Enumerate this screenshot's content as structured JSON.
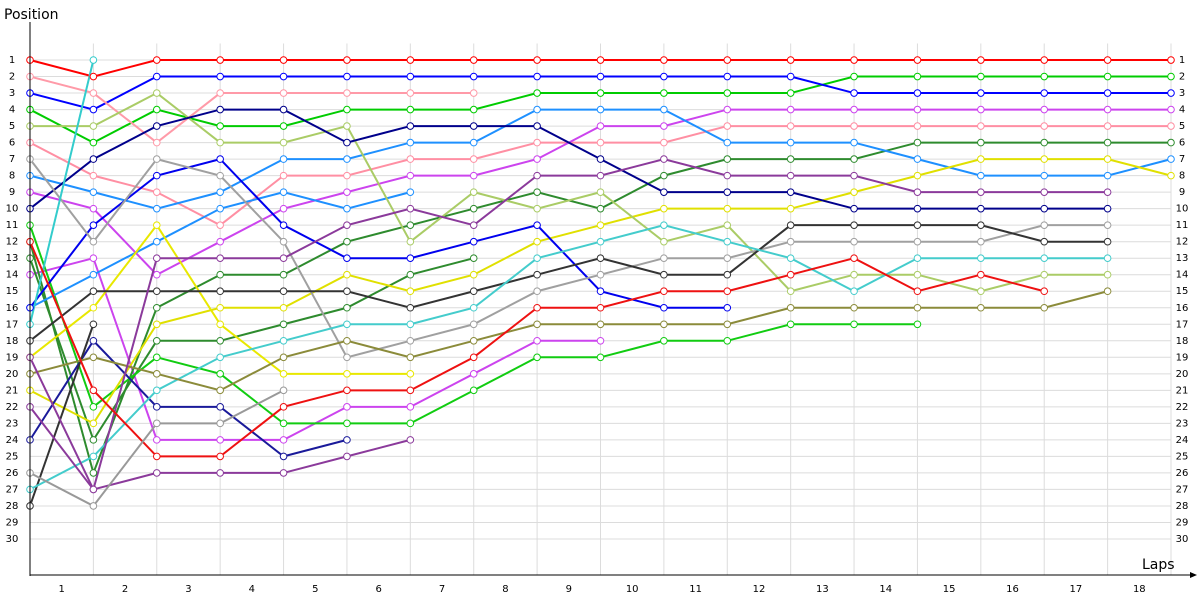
{
  "chart_data": {
    "type": "lap",
    "y_title": "Position",
    "x_title": "Laps",
    "x": [
      0,
      1,
      2,
      3,
      4,
      5,
      6,
      7,
      8,
      9,
      10,
      11,
      12,
      13,
      14,
      15,
      16,
      17,
      18
    ],
    "xlim": [
      0,
      18
    ],
    "xticks": [
      {
        "value": 0.5,
        "label": "1"
      },
      {
        "value": 1.5,
        "label": "2"
      },
      {
        "value": 2.5,
        "label": "3"
      },
      {
        "value": 3.5,
        "label": "4"
      },
      {
        "value": 4.5,
        "label": "5"
      },
      {
        "value": 5.5,
        "label": "6"
      },
      {
        "value": 6.5,
        "label": "7"
      },
      {
        "value": 7.5,
        "label": "8"
      },
      {
        "value": 8.5,
        "label": "9"
      },
      {
        "value": 9.5,
        "label": "10"
      },
      {
        "value": 10.5,
        "label": "11"
      },
      {
        "value": 11.5,
        "label": "12"
      },
      {
        "value": 12.5,
        "label": "13"
      },
      {
        "value": 13.5,
        "label": "14"
      },
      {
        "value": 14.5,
        "label": "15"
      },
      {
        "value": 15.5,
        "label": "16"
      },
      {
        "value": 16.5,
        "label": "17"
      },
      {
        "value": 17.5,
        "label": "18"
      }
    ],
    "ylim": [
      0,
      32
    ],
    "y_reversed": true,
    "yticks": [
      1,
      2,
      3,
      4,
      5,
      6,
      7,
      8,
      9,
      10,
      11,
      12,
      13,
      14,
      15,
      16,
      17,
      18,
      19,
      20,
      21,
      22,
      23,
      24,
      25,
      26,
      27,
      28,
      29,
      30
    ],
    "grid": true,
    "series": [
      {
        "color": "#ff0000",
        "values": [
          1,
          2,
          1,
          1,
          1,
          1,
          1,
          1,
          1,
          1,
          1,
          1,
          1,
          1,
          1,
          1,
          1,
          1,
          1
        ]
      },
      {
        "color": "#00cc00",
        "values": [
          4,
          6,
          4,
          5,
          5,
          4,
          4,
          4,
          3,
          3,
          3,
          3,
          3,
          2,
          2,
          2,
          2,
          2,
          2
        ]
      },
      {
        "color": "#0000ff",
        "values": [
          3,
          4,
          2,
          2,
          2,
          2,
          2,
          2,
          2,
          2,
          2,
          2,
          2,
          3,
          3,
          3,
          3,
          3,
          3
        ]
      },
      {
        "color": "#ff9aa8",
        "values": [
          2,
          3,
          6,
          3,
          3,
          3,
          3,
          3,
          null,
          null,
          null,
          null,
          null,
          null,
          null,
          null,
          null,
          null,
          null
        ]
      },
      {
        "color": "#ff8fa3",
        "values": [
          6,
          8,
          9,
          11,
          8,
          8,
          7,
          7,
          6,
          6,
          6,
          5,
          5,
          5,
          5,
          5,
          5,
          5,
          5
        ]
      },
      {
        "color": "#cc44ee",
        "values": [
          9,
          10,
          14,
          12,
          10,
          9,
          8,
          8,
          7,
          5,
          5,
          4,
          4,
          4,
          4,
          4,
          4,
          4,
          4
        ]
      },
      {
        "color": "#cc44ee",
        "values": [
          14,
          13,
          24,
          24,
          24,
          22,
          22,
          20,
          18,
          18,
          null,
          null,
          null,
          null,
          null,
          null,
          null,
          null,
          null
        ]
      },
      {
        "color": "#2e8b2e",
        "values": [
          12,
          26,
          16,
          14,
          14,
          12,
          11,
          10,
          9,
          10,
          8,
          7,
          7,
          7,
          6,
          6,
          6,
          6,
          6
        ]
      },
      {
        "color": "#2e8b2e",
        "values": [
          13,
          24,
          18,
          18,
          17,
          16,
          14,
          13,
          null,
          null,
          null,
          null,
          null,
          null,
          null,
          null,
          null,
          null,
          null
        ]
      },
      {
        "color": "#11cc11",
        "values": [
          11,
          22,
          19,
          20,
          23,
          23,
          23,
          21,
          19,
          19,
          18,
          18,
          17,
          17,
          17,
          null,
          null,
          null,
          null
        ]
      },
      {
        "color": "#1e90ff",
        "values": [
          8,
          9,
          10,
          9,
          7,
          7,
          6,
          6,
          4,
          4,
          4,
          6,
          6,
          6,
          7,
          8,
          8,
          8,
          7
        ]
      },
      {
        "color": "#1e90ff",
        "values": [
          16,
          14,
          12,
          10,
          9,
          10,
          9,
          null,
          null,
          null,
          null,
          null,
          null,
          null,
          null,
          null,
          null,
          null,
          null
        ]
      },
      {
        "color": "#e0e000",
        "values": [
          21,
          23,
          17,
          16,
          16,
          14,
          15,
          14,
          12,
          11,
          10,
          10,
          10,
          9,
          8,
          7,
          7,
          7,
          8
        ]
      },
      {
        "color": "#e8e800",
        "values": [
          19,
          16,
          11,
          17,
          20,
          20,
          20,
          null,
          null,
          null,
          null,
          null,
          null,
          null,
          null,
          null,
          null,
          null,
          null
        ]
      },
      {
        "color": "#aacc66",
        "values": [
          5,
          5,
          3,
          6,
          6,
          5,
          12,
          9,
          10,
          9,
          12,
          11,
          15,
          14,
          14,
          15,
          14,
          14,
          null
        ]
      },
      {
        "color": "#00008b",
        "values": [
          10,
          7,
          5,
          4,
          4,
          6,
          5,
          5,
          5,
          7,
          9,
          9,
          9,
          10,
          10,
          10,
          10,
          10,
          null
        ]
      },
      {
        "color": "#0000ee",
        "values": [
          16,
          11,
          8,
          7,
          11,
          13,
          13,
          12,
          11,
          15,
          16,
          16,
          null,
          null,
          null,
          null,
          null,
          null,
          null
        ]
      },
      {
        "color": "#1a1a9a",
        "values": [
          24,
          18,
          22,
          22,
          25,
          24,
          null,
          null,
          null,
          null,
          null,
          null,
          null,
          null,
          null,
          null,
          null,
          null,
          null
        ]
      },
      {
        "color": "#a0a0a0",
        "values": [
          7,
          12,
          7,
          8,
          12,
          19,
          18,
          17,
          15,
          14,
          13,
          13,
          12,
          12,
          12,
          12,
          11,
          11,
          null
        ]
      },
      {
        "color": "#333333",
        "values": [
          18,
          15,
          15,
          15,
          15,
          15,
          16,
          15,
          14,
          13,
          14,
          14,
          11,
          11,
          11,
          11,
          12,
          12,
          null
        ]
      },
      {
        "color": "#333333",
        "values": [
          28,
          17,
          null,
          null,
          null,
          null,
          null,
          null,
          null,
          null,
          null,
          null,
          null,
          null,
          null,
          null,
          null,
          null,
          null
        ]
      },
      {
        "color": "#33cccc",
        "values": [
          17,
          1,
          null,
          null,
          null,
          null,
          null,
          null,
          null,
          null,
          null,
          null,
          null,
          null,
          null,
          null,
          null,
          null,
          null
        ]
      },
      {
        "color": "#44cccc",
        "values": [
          27,
          25,
          21,
          19,
          18,
          17,
          17,
          16,
          13,
          12,
          11,
          12,
          13,
          15,
          13,
          13,
          13,
          13,
          null
        ]
      },
      {
        "color": "#8b8b3a",
        "values": [
          20,
          19,
          20,
          21,
          19,
          18,
          19,
          18,
          17,
          17,
          17,
          17,
          16,
          16,
          16,
          16,
          16,
          15,
          null
        ]
      },
      {
        "color": "#8b3a9b",
        "values": [
          19,
          27,
          13,
          13,
          13,
          11,
          10,
          11,
          8,
          8,
          7,
          8,
          8,
          8,
          9,
          9,
          9,
          9,
          null
        ]
      },
      {
        "color": "#8b3a9b",
        "values": [
          22,
          27,
          26,
          26,
          26,
          25,
          24,
          null,
          null,
          null,
          null,
          null,
          null,
          null,
          null,
          null,
          null,
          null,
          null
        ]
      },
      {
        "color": "#ee1111",
        "values": [
          12,
          21,
          25,
          25,
          22,
          21,
          21,
          19,
          16,
          16,
          15,
          15,
          14,
          13,
          15,
          14,
          15,
          null,
          null
        ]
      },
      {
        "color": "#999999",
        "values": [
          26,
          28,
          23,
          23,
          21,
          null,
          null,
          null,
          null,
          null,
          null,
          null,
          null,
          null,
          null,
          null,
          null,
          null,
          null
        ]
      }
    ]
  }
}
